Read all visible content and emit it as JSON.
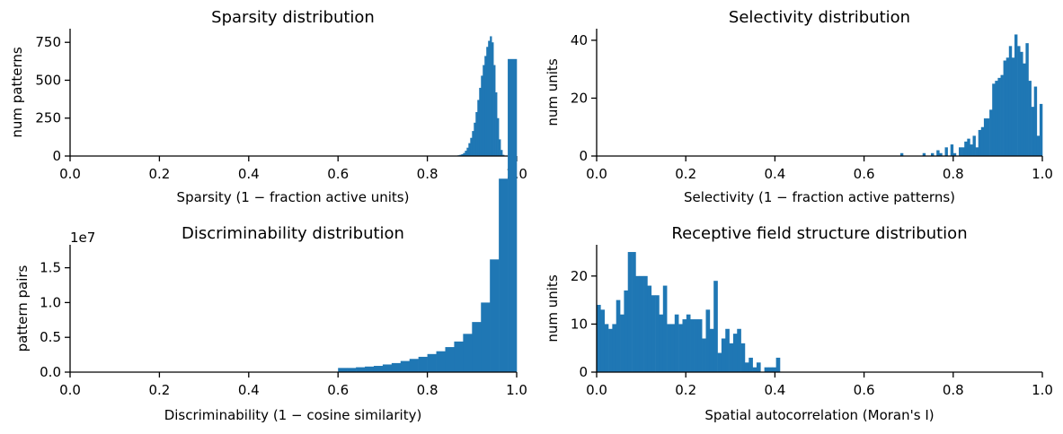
{
  "figure": {
    "bar_color": "#1f77b4",
    "axis_color": "#000000"
  },
  "chart_data": [
    {
      "type": "bar",
      "title": "Sparsity distribution",
      "xlabel": "Sparsity (1 −  fraction active units)",
      "ylabel": "num patterns",
      "xlim": [
        0,
        1
      ],
      "ylim": [
        0,
        840
      ],
      "xticks": [
        "0.0",
        "0.2",
        "0.4",
        "0.6",
        "0.8",
        "1.0"
      ],
      "yticks": [
        "0",
        "250",
        "500",
        "750"
      ],
      "bin_width": 0.004,
      "x": [
        0.864,
        0.868,
        0.872,
        0.876,
        0.88,
        0.884,
        0.888,
        0.892,
        0.896,
        0.9,
        0.904,
        0.908,
        0.912,
        0.916,
        0.92,
        0.924,
        0.928,
        0.932,
        0.936,
        0.94,
        0.944,
        0.948,
        0.952,
        0.956,
        0.96,
        0.964,
        0.968
      ],
      "values": [
        3,
        5,
        8,
        12,
        20,
        35,
        55,
        85,
        120,
        165,
        220,
        290,
        370,
        450,
        530,
        600,
        660,
        720,
        760,
        790,
        750,
        600,
        420,
        250,
        110,
        40,
        8
      ]
    },
    {
      "type": "bar",
      "title": "Selectivity distribution",
      "xlabel": "Selectivity (1 −  fraction active patterns)",
      "ylabel": "num units",
      "xlim": [
        0,
        1
      ],
      "ylim": [
        0,
        44
      ],
      "xticks": [
        "0.0",
        "0.2",
        "0.4",
        "0.6",
        "0.8",
        "1.0"
      ],
      "yticks": [
        "0",
        "20",
        "40"
      ],
      "bin_width": 0.00625,
      "x": [
        0.6813,
        0.7313,
        0.75,
        0.7625,
        0.7688,
        0.7813,
        0.7938,
        0.8,
        0.8125,
        0.8188,
        0.825,
        0.8313,
        0.8375,
        0.8438,
        0.85,
        0.8563,
        0.8625,
        0.8688,
        0.875,
        0.8813,
        0.8875,
        0.8938,
        0.9,
        0.9063,
        0.9125,
        0.9188,
        0.925,
        0.9313,
        0.9375,
        0.9438,
        0.95,
        0.9563,
        0.9625,
        0.9688,
        0.975,
        0.9813,
        0.9875,
        0.9938
      ],
      "values": [
        1,
        1,
        1,
        2,
        1,
        3,
        4,
        1,
        3,
        3,
        5,
        6,
        4,
        7,
        3,
        9,
        10,
        13,
        13,
        16,
        25,
        26,
        27,
        28,
        33,
        34,
        38,
        34,
        42,
        38,
        36,
        32,
        39,
        26,
        17,
        24,
        7,
        18
      ]
    },
    {
      "type": "bar",
      "title": "Discriminability distribution",
      "xlabel": "Discriminability (1 −  cosine similarity)",
      "ylabel": "pattern pairs",
      "xlim": [
        0,
        1
      ],
      "ylim": [
        0,
        1.83
      ],
      "axis_multiplier": "1e7",
      "xticks": [
        "0.0",
        "0.2",
        "0.4",
        "0.6",
        "0.8",
        "1.0"
      ],
      "yticks": [
        "0.0",
        "0.5",
        "1.0",
        "1.5"
      ],
      "bin_width": 0.02,
      "x": [
        0.6,
        0.62,
        0.64,
        0.66,
        0.68,
        0.7,
        0.72,
        0.74,
        0.76,
        0.78,
        0.8,
        0.82,
        0.84,
        0.86,
        0.88,
        0.9,
        0.92,
        0.94,
        0.96,
        0.98
      ],
      "values": [
        0.06,
        0.06,
        0.07,
        0.08,
        0.09,
        0.11,
        0.13,
        0.16,
        0.19,
        0.22,
        0.26,
        0.3,
        0.36,
        0.44,
        0.55,
        0.72,
        1.0,
        1.62,
        2.78,
        4.5
      ]
    },
    {
      "type": "bar",
      "title": "Receptive field structure distribution",
      "xlabel": "Spatial autocorrelation (Moran's I)",
      "ylabel": "num units",
      "xlim": [
        0,
        1
      ],
      "ylim": [
        0,
        26.5
      ],
      "xticks": [
        "0.0",
        "0.2",
        "0.4",
        "0.6",
        "0.8",
        "1.0"
      ],
      "yticks": [
        "0",
        "10",
        "20"
      ],
      "bin_width": 0.00875,
      "x": [
        0.0,
        0.0088,
        0.0175,
        0.0263,
        0.035,
        0.0438,
        0.0525,
        0.0613,
        0.07,
        0.0788,
        0.0875,
        0.0963,
        0.105,
        0.1138,
        0.1225,
        0.1313,
        0.14,
        0.1488,
        0.1575,
        0.1663,
        0.175,
        0.1838,
        0.1925,
        0.2013,
        0.21,
        0.2188,
        0.2275,
        0.2363,
        0.245,
        0.2538,
        0.2625,
        0.2713,
        0.28,
        0.2888,
        0.2975,
        0.3063,
        0.315,
        0.3238,
        0.3325,
        0.3413,
        0.35,
        0.3588,
        0.3675,
        0.3763,
        0.385,
        0.3938,
        0.4025
      ],
      "values": [
        14,
        13,
        10,
        9,
        10,
        15,
        12,
        17,
        25,
        25,
        20,
        20,
        20,
        18,
        16,
        16,
        12,
        18,
        10,
        10,
        12,
        10,
        11,
        12,
        11,
        11,
        11,
        7,
        13,
        9,
        19,
        4,
        7,
        9,
        6,
        8,
        9,
        6,
        2,
        3,
        1,
        2,
        0,
        1,
        1,
        1,
        3
      ]
    }
  ]
}
